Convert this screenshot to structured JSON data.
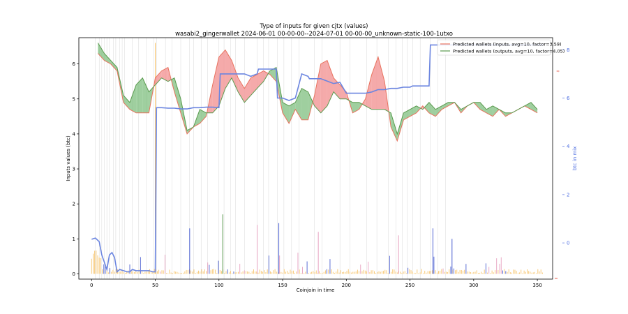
{
  "chart_data": {
    "type": "line",
    "title": "Type of inputs for given cjtx (values)",
    "subtitle": "wasabi2_gingerwallet 2024-06-01 00-00-00--2024-07-01 00-00-00_unknown-static-100-1utxo",
    "xlabel": "Coinjoin in time",
    "ylabel": "Inputs values (btc)",
    "ylabel_right": "btc in mix",
    "xlim": [
      -10,
      362
    ],
    "ylim": [
      -0.15,
      6.75
    ],
    "ylim_right": [
      -1.5,
      8.5
    ],
    "x_ticks": [
      "0",
      "50",
      "100",
      "150",
      "200",
      "250",
      "300",
      "350"
    ],
    "y_ticks": [
      "0",
      "1",
      "2",
      "3",
      "4",
      "5",
      "6"
    ],
    "y_ticks_right": [
      "0",
      "2",
      "4",
      "6",
      "8"
    ],
    "grid": "vertical lines at coinjoin events",
    "legend_position": "top-right",
    "colors": {
      "inputs": "#e8725e",
      "outputs": "#5a9a4e",
      "fill_red": "#f28e8e",
      "fill_green": "#7fbf7f",
      "mix": "#6b85e0",
      "bars_orange": "#f7c46c",
      "bars_blue": "#4a5fd0",
      "bars_pink": "#e7a1c0"
    },
    "series": [
      {
        "name": "Predicted wallets (inputs, avg=10, factor=3.59)",
        "x": [
          5,
          10,
          15,
          20,
          25,
          30,
          35,
          40,
          45,
          50,
          55,
          60,
          65,
          70,
          75,
          80,
          85,
          90,
          95,
          100,
          105,
          110,
          115,
          120,
          125,
          130,
          135,
          140,
          145,
          150,
          155,
          160,
          165,
          170,
          175,
          180,
          185,
          190,
          195,
          200,
          205,
          210,
          215,
          220,
          225,
          230,
          235,
          240,
          245,
          250,
          255,
          260,
          265,
          270,
          275,
          280,
          285,
          290,
          295,
          300,
          305,
          310,
          315,
          320,
          325,
          330,
          335,
          340,
          345,
          350
        ],
        "values": [
          6.3,
          6.1,
          6.0,
          5.8,
          4.9,
          4.7,
          4.6,
          4.6,
          4.6,
          5.6,
          5.8,
          5.9,
          5.2,
          4.6,
          4.0,
          4.2,
          4.3,
          4.5,
          5.4,
          6.2,
          6.4,
          6.1,
          5.6,
          5.3,
          5.6,
          5.7,
          5.8,
          5.7,
          5.5,
          4.6,
          4.3,
          4.7,
          4.4,
          4.4,
          5.1,
          6.0,
          6.1,
          5.6,
          5.4,
          5.2,
          4.6,
          4.7,
          5.0,
          5.7,
          6.2,
          5.5,
          4.2,
          3.8,
          4.4,
          4.5,
          4.6,
          4.8,
          4.6,
          4.5,
          4.7,
          4.8,
          4.9,
          4.6,
          4.8,
          4.9,
          4.7,
          4.6,
          4.5,
          4.7,
          4.5,
          4.6,
          4.7,
          4.8,
          4.7,
          4.6
        ]
      },
      {
        "name": "Predicted wallets (outputs, avg=10, factor=4.05)",
        "x": [
          5,
          10,
          15,
          20,
          25,
          30,
          35,
          40,
          45,
          50,
          55,
          60,
          65,
          70,
          75,
          80,
          85,
          90,
          95,
          100,
          105,
          110,
          115,
          120,
          125,
          130,
          135,
          140,
          145,
          150,
          155,
          160,
          165,
          170,
          175,
          180,
          185,
          190,
          195,
          200,
          205,
          210,
          215,
          220,
          225,
          230,
          235,
          240,
          245,
          250,
          255,
          260,
          265,
          270,
          275,
          280,
          285,
          290,
          295,
          300,
          305,
          310,
          315,
          320,
          325,
          330,
          335,
          340,
          345,
          350
        ],
        "values": [
          6.6,
          6.3,
          6.1,
          5.9,
          5.1,
          4.9,
          5.4,
          5.6,
          5.2,
          5.4,
          5.6,
          5.5,
          5.6,
          5.0,
          4.1,
          4.2,
          4.7,
          4.6,
          4.6,
          4.8,
          5.3,
          5.6,
          5.2,
          4.9,
          5.1,
          5.3,
          5.5,
          5.8,
          5.9,
          4.9,
          4.8,
          4.9,
          5.3,
          5.2,
          4.8,
          4.6,
          4.8,
          5.2,
          5.0,
          5.0,
          4.9,
          4.9,
          4.8,
          4.7,
          4.7,
          4.7,
          4.6,
          4.0,
          4.6,
          4.7,
          4.8,
          4.7,
          4.9,
          4.7,
          4.8,
          4.9,
          4.9,
          4.7,
          4.8,
          4.9,
          4.9,
          4.7,
          4.8,
          4.7,
          4.6,
          4.6,
          4.7,
          4.8,
          4.9,
          4.7
        ]
      },
      {
        "name": "",
        "axis": "right",
        "x": [
          0,
          3,
          5,
          6,
          8,
          10,
          12,
          14,
          16,
          18,
          20,
          22,
          25,
          28,
          30,
          32,
          35,
          40,
          45,
          48,
          49,
          50,
          51,
          55,
          60,
          65,
          70,
          75,
          80,
          85,
          90,
          95,
          100,
          101,
          105,
          110,
          115,
          120,
          125,
          130,
          131,
          135,
          140,
          145,
          146,
          150,
          155,
          160,
          165,
          170,
          171,
          175,
          180,
          185,
          190,
          195,
          200,
          205,
          210,
          215,
          220,
          225,
          230,
          235,
          240,
          245,
          250,
          252,
          255,
          260,
          265,
          266,
          270,
          275,
          280,
          285,
          290,
          295,
          300,
          305,
          310,
          315,
          320,
          325,
          330,
          335,
          340,
          345,
          350,
          355
        ],
        "values": [
          0.15,
          0.2,
          0.1,
          0.05,
          -0.5,
          -0.8,
          -1.1,
          -0.5,
          -0.4,
          -0.6,
          -1.2,
          -1.1,
          -1.15,
          -1.2,
          -1.2,
          -1.1,
          -1.15,
          -1.15,
          -1.15,
          -1.2,
          -1.2,
          -1.2,
          5.6,
          5.6,
          5.58,
          5.58,
          5.55,
          5.55,
          5.6,
          5.6,
          5.62,
          5.62,
          5.6,
          7.0,
          7.0,
          7.0,
          7.0,
          7.0,
          6.9,
          7.0,
          7.2,
          7.2,
          7.2,
          7.2,
          6.0,
          6.0,
          5.9,
          6.0,
          7.0,
          6.9,
          6.8,
          6.8,
          6.8,
          6.7,
          6.6,
          6.65,
          6.2,
          6.2,
          6.2,
          6.2,
          6.25,
          6.35,
          6.35,
          6.4,
          6.4,
          6.45,
          6.45,
          6.5,
          6.5,
          6.5,
          6.5,
          8.2,
          8.2,
          8.2,
          8.2,
          8.2,
          8.2,
          8.2,
          8.2,
          8.2,
          8.2,
          8.2,
          8.2,
          8.2,
          8.2,
          8.2,
          8.2,
          8.2,
          8.2,
          8.2
        ]
      }
    ],
    "bars_note": "small per-coinjoin input value bars near zero"
  }
}
